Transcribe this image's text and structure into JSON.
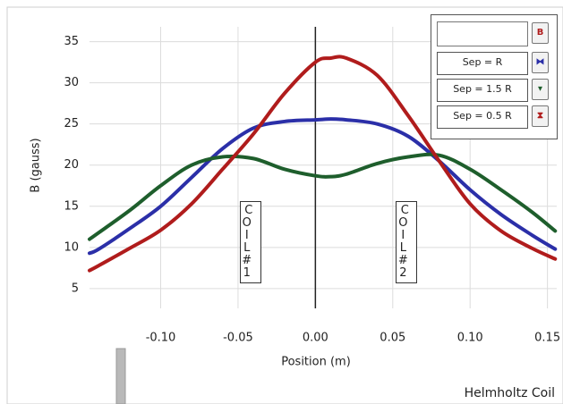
{
  "chart_data": {
    "type": "line",
    "title": "Helmholtz Coil",
    "x_label": "Position (m)",
    "y_label": "B (gauss)",
    "legend_title": "B",
    "annotations": [
      "COIL #1",
      "COIL #2"
    ],
    "annotation_x": [
      -0.042,
      0.059
    ],
    "x": [
      -0.146,
      -0.14,
      -0.12,
      -0.1,
      -0.08,
      -0.06,
      -0.04,
      -0.02,
      0,
      0.01,
      0.02,
      0.04,
      0.06,
      0.08,
      0.1,
      0.12,
      0.14,
      0.155
    ],
    "series": [
      {
        "name": "Sep = R",
        "color": "#2b2fa8",
        "values": [
          9.3,
          9.8,
          12.3,
          15,
          18.5,
          22,
          24.5,
          25.3,
          25.5,
          25.6,
          25.5,
          25,
          23.5,
          20.5,
          17,
          14,
          11.5,
          9.8
        ]
      },
      {
        "name": "Sep = 1.5 R",
        "color": "#1e5e2c",
        "values": [
          11,
          11.8,
          14.5,
          17.5,
          20,
          21,
          20.8,
          19.5,
          18.7,
          18.6,
          18.9,
          20.2,
          21,
          21.2,
          19.5,
          17,
          14.3,
          12
        ]
      },
      {
        "name": "Sep = 0.5 R",
        "color": "#b01c1c",
        "values": [
          7.2,
          7.8,
          9.9,
          12.1,
          15.3,
          19.5,
          23.8,
          28.7,
          32.5,
          33,
          33,
          30.9,
          26,
          20.5,
          15.3,
          12,
          9.9,
          8.6
        ]
      }
    ],
    "xlim": [
      -0.146,
      0.156
    ],
    "ylim": [
      2.6,
      36.8
    ],
    "xticks": [
      {
        "value": -0.1,
        "label": "-0.10"
      },
      -0.05,
      {
        "value": 0,
        "label": "0.00"
      },
      0.05,
      {
        "value": 0.1,
        "label": "0.10"
      },
      0.15
    ],
    "yticks": [
      5,
      10,
      15,
      20,
      25,
      30,
      35
    ],
    "grid": true
  }
}
